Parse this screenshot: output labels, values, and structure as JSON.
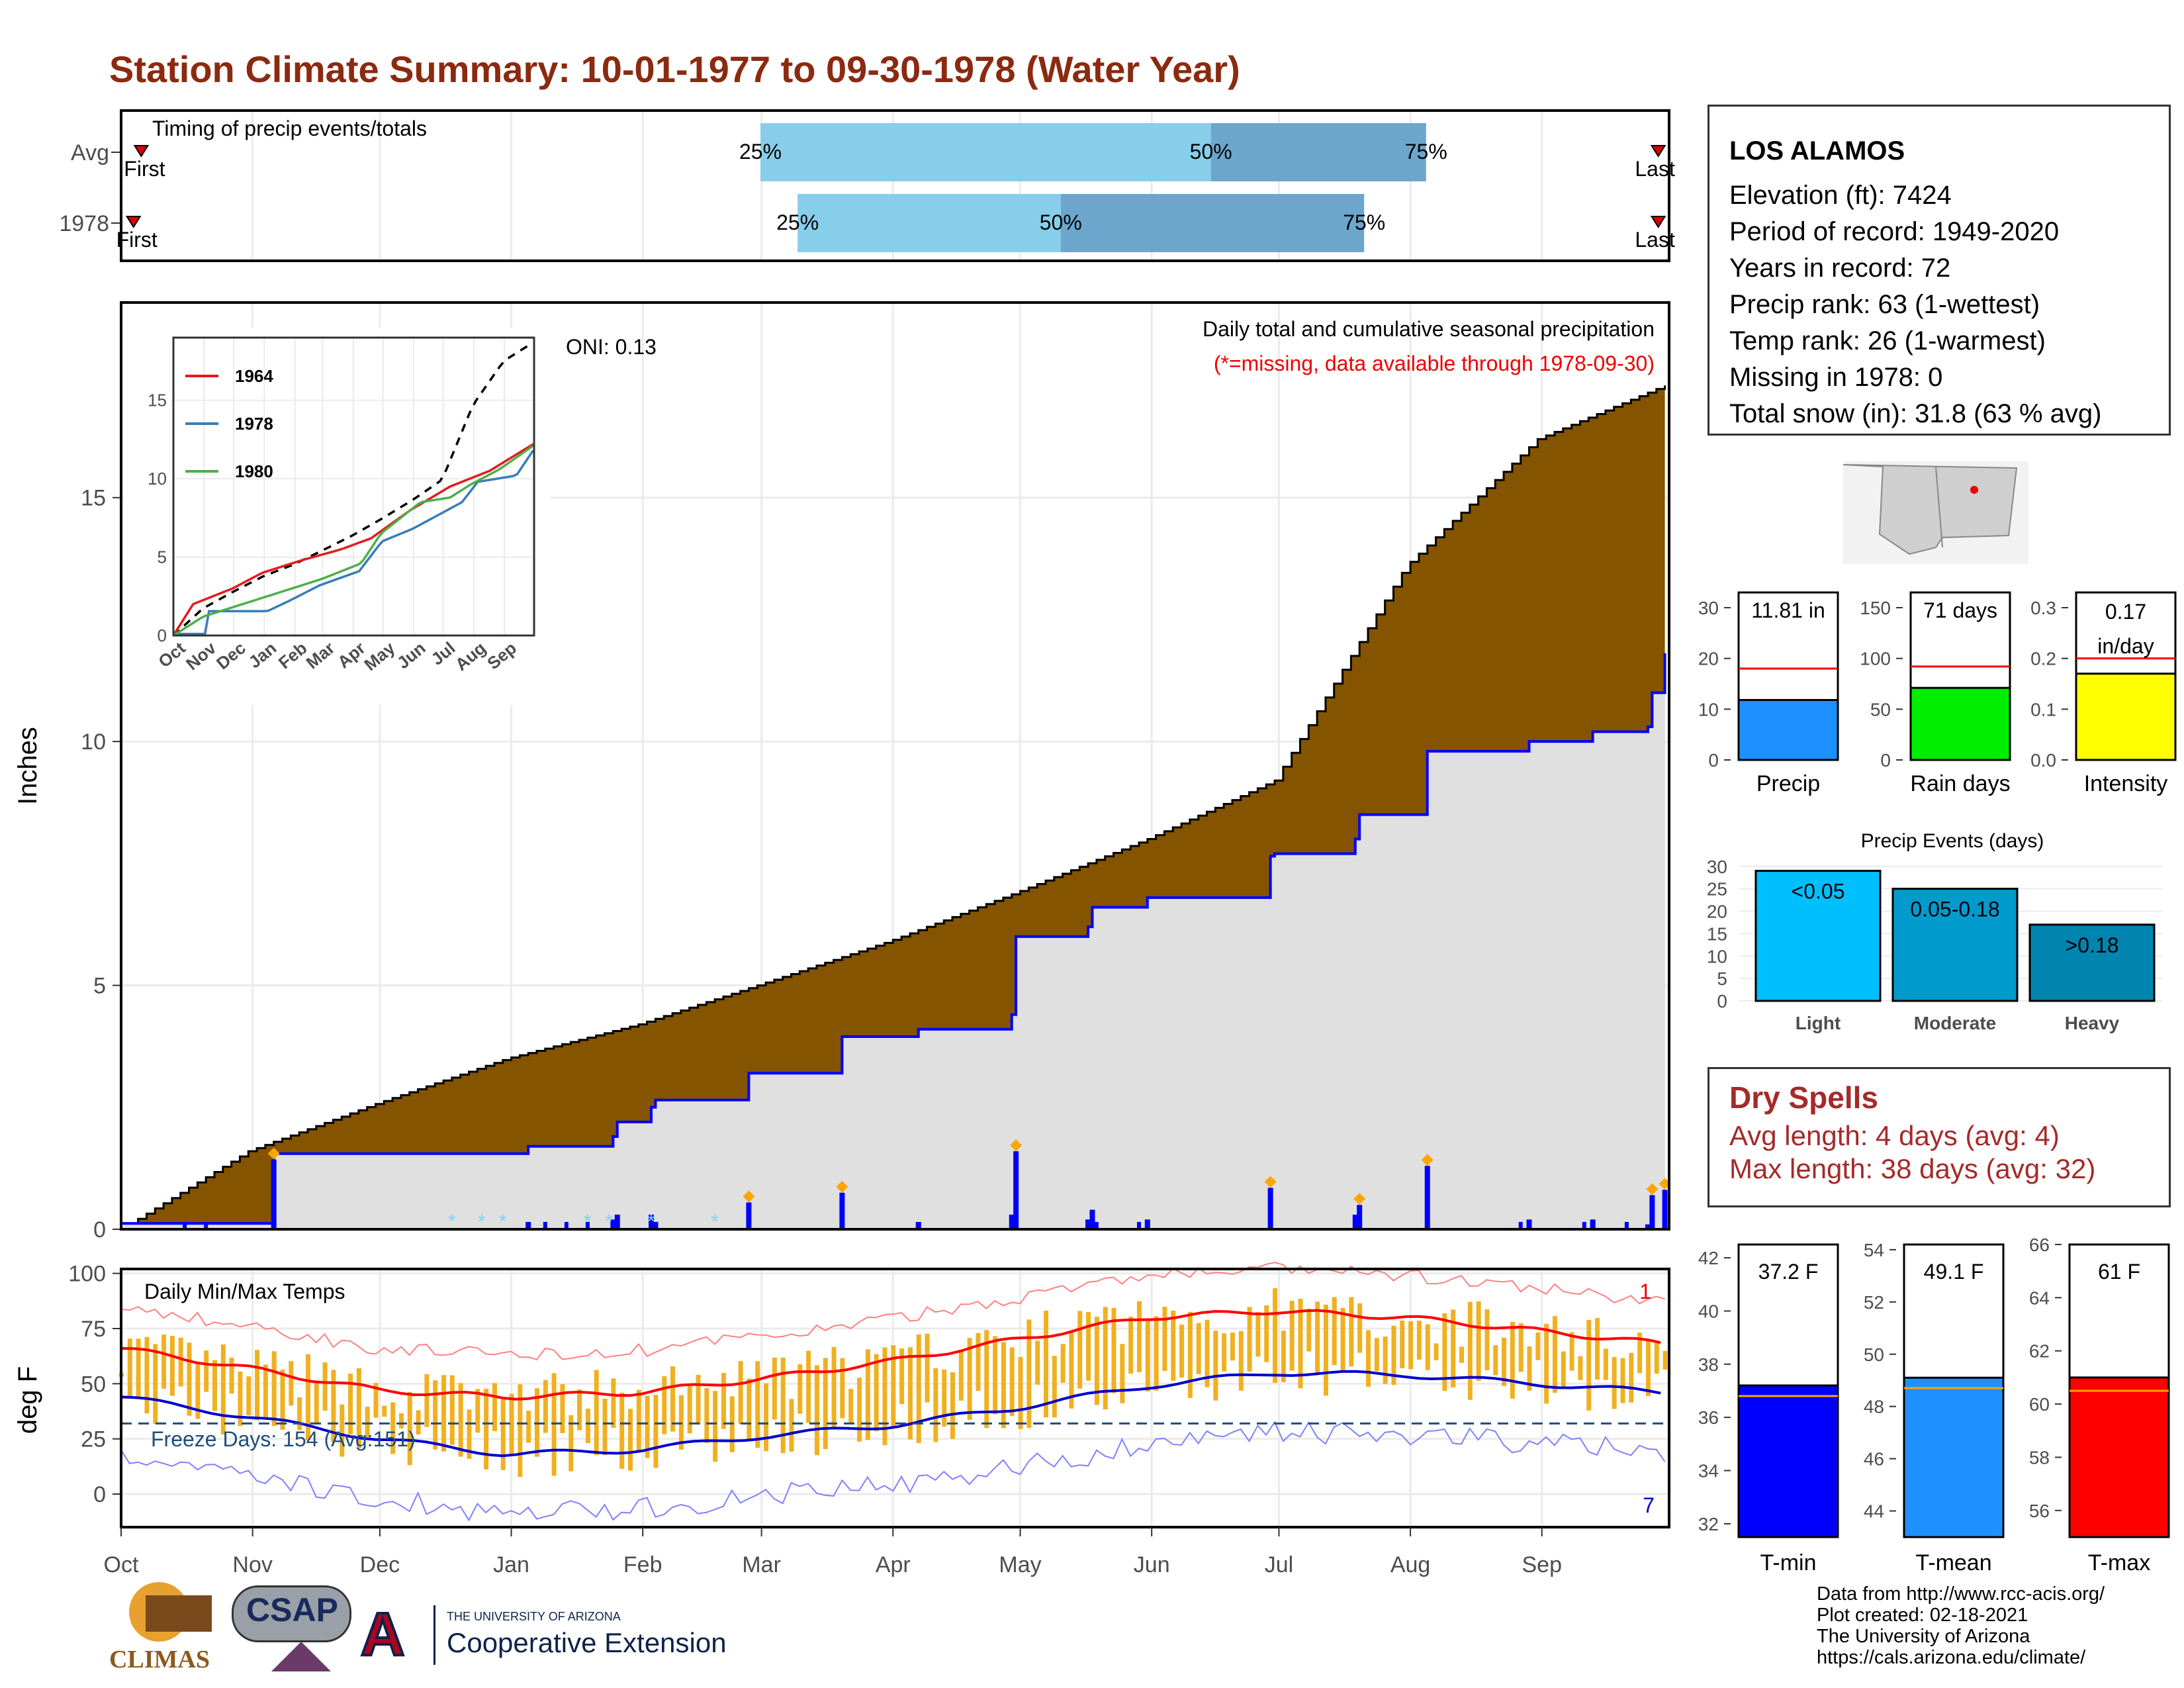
{
  "title": "Station Climate Summary: 10-01-1977 to 09-30-1978 (Water Year)",
  "timing": {
    "label": "Timing of precip events/totals",
    "rows": [
      {
        "name": "Avg",
        "first_frac": 0.013,
        "last_frac": 0.993,
        "p25_frac": 0.413,
        "p50_frac": 0.704,
        "p75_frac": 0.843
      },
      {
        "name": "1978",
        "first_frac": 0.008,
        "last_frac": 0.993,
        "p25_frac": 0.437,
        "p50_frac": 0.607,
        "p75_frac": 0.803
      }
    ],
    "first_label": "First",
    "last_label": "Last",
    "p25_label": "25%",
    "p50_label": "50%",
    "p75_label": "75%"
  },
  "precip_panel": {
    "ylabel": "Inches",
    "title": "Daily total and cumulative seasonal precipitation",
    "missing_note": "(*=missing, data available through 1978-09-30)",
    "oni": "ONI: 0.13"
  },
  "inset": {
    "legend": [
      "1964",
      "1978",
      "1980"
    ],
    "colors": [
      "#e41a1c",
      "#377eb8",
      "#4daf4a"
    ],
    "months": [
      "Oct",
      "Nov",
      "Dec",
      "Jan",
      "Feb",
      "Mar",
      "Apr",
      "May",
      "Jun",
      "Jul",
      "Aug",
      "Sep"
    ]
  },
  "temp_panel": {
    "ylabel": "deg F",
    "label": "Daily Min/Max Temps",
    "freeze": "Freeze Days: 154 (Avg:151)",
    "count_max": "1",
    "count_min": "7"
  },
  "months": [
    "Oct",
    "Nov",
    "Dec",
    "Jan",
    "Feb",
    "Mar",
    "Apr",
    "May",
    "Jun",
    "Jul",
    "Aug",
    "Sep"
  ],
  "station": {
    "name": "LOS ALAMOS",
    "lines": [
      "Elevation (ft): 7424",
      "Period of record: 1949-2020",
      "Years in record: 72",
      "Precip rank: 63 (1-wettest)",
      "Temp rank: 26 (1-warmest)",
      "Missing in 1978: 0",
      "Total snow (in): 31.8 (63 % avg)"
    ]
  },
  "small_bars": [
    {
      "label": "Precip",
      "value_text": "11.81 in",
      "value": 11.81,
      "avg": 18.0,
      "max": 33,
      "ticks": [
        0,
        10,
        20,
        30
      ],
      "color": "#1e90ff"
    },
    {
      "label": "Rain days",
      "value_text": "71 days",
      "value": 71,
      "avg": 92,
      "max": 165,
      "ticks": [
        0,
        50,
        100,
        150
      ],
      "color": "#00ee00"
    },
    {
      "label": "Intensity",
      "value_text_1": "0.17",
      "value_text_2": "in/day",
      "value": 0.17,
      "avg": 0.2,
      "max": 0.33,
      "ticks": [
        "0.0",
        "0.1",
        "0.2",
        "0.3"
      ],
      "color": "#ffff00"
    }
  ],
  "precip_events": {
    "title": "Precip Events (days)",
    "ticks": [
      0,
      5,
      10,
      15,
      20,
      25,
      30
    ],
    "bars": [
      {
        "cat": "Light",
        "label": "<0.05",
        "value": 29,
        "color": "#00bfff"
      },
      {
        "cat": "Moderate",
        "label": "0.05-0.18",
        "value": 25,
        "color": "#009acd"
      },
      {
        "cat": "Heavy",
        "label": ">0.18",
        "value": 17,
        "color": "#0084b0"
      }
    ]
  },
  "dry_spells": {
    "title": "Dry Spells",
    "avg_len": "Avg length: 4 days (avg: 4)",
    "max_len": "Max length: 38 days (avg: 32)"
  },
  "temp_bars": [
    {
      "label": "T-min",
      "value_text": "37.2 F",
      "value": 37.2,
      "avg": 36.8,
      "min": 31.5,
      "max": 42.5,
      "ticks": [
        32,
        34,
        36,
        38,
        40,
        42
      ],
      "color": "#0000ff"
    },
    {
      "label": "T-mean",
      "value_text": "49.1 F",
      "value": 49.1,
      "avg": 48.7,
      "min": 43,
      "max": 54.2,
      "ticks": [
        44,
        46,
        48,
        50,
        52,
        54
      ],
      "color": "#1e90ff"
    },
    {
      "label": "T-max",
      "value_text": "61 F",
      "value": 61.0,
      "avg": 60.5,
      "min": 55,
      "max": 66,
      "ticks": [
        56,
        58,
        60,
        62,
        64,
        66
      ],
      "color": "#ff0000"
    }
  ],
  "credits": [
    "Data from http://www.rcc-acis.org/",
    "Plot created: 02-18-2021",
    "The University of Arizona",
    "https://cals.arizona.edu/climate/"
  ],
  "logos": {
    "climas": "CLIMAS",
    "csap": "CSAP",
    "ua_small": "THE UNIVERSITY OF ARIZONA",
    "ua_big": "Cooperative Extension"
  },
  "chart_data": {
    "type": "area",
    "title": "Daily total and cumulative seasonal precipitation",
    "ylabel": "Inches",
    "ylim": [
      0,
      19
    ],
    "x_months": [
      "Oct",
      "Nov",
      "Dec",
      "Jan",
      "Feb",
      "Mar",
      "Apr",
      "May",
      "Jun",
      "Jul",
      "Aug",
      "Sep"
    ],
    "series": [
      {
        "name": "Avg cumulative",
        "x_day": [
          0,
          30,
          61,
          91,
          122,
          150,
          181,
          211,
          242,
          272,
          303,
          334,
          364
        ],
        "values": [
          0,
          1.6,
          2.6,
          3.5,
          4.2,
          5.0,
          5.9,
          6.9,
          8.0,
          9.2,
          13.6,
          16.2,
          17.3
        ]
      },
      {
        "name": "1978 cumulative",
        "x_day": [
          0,
          35,
          36,
          60,
          61,
          95,
          96,
          116,
          117,
          125,
          126,
          147,
          148,
          170,
          188,
          210,
          211,
          228,
          229,
          241,
          242,
          271,
          272,
          291,
          292,
          308,
          332,
          347,
          360,
          361,
          364
        ],
        "values": [
          0.12,
          0.12,
          1.55,
          1.55,
          1.55,
          1.55,
          1.7,
          1.9,
          2.2,
          2.5,
          2.65,
          2.65,
          3.2,
          3.95,
          4.1,
          4.4,
          6.0,
          6.2,
          6.6,
          6.6,
          6.8,
          7.65,
          7.7,
          8.0,
          8.5,
          9.8,
          10.0,
          10.2,
          10.3,
          11.0,
          11.81
        ]
      }
    ],
    "temps": {
      "ylim": [
        -15,
        102
      ],
      "normal_max_knots": {
        "x_day": [
          0,
          30,
          61,
          91,
          122,
          150,
          181,
          211,
          242,
          272,
          303,
          334,
          364
        ],
        "values": [
          66,
          57,
          47,
          44,
          46,
          52,
          60,
          70,
          80,
          83,
          80,
          74,
          68
        ]
      },
      "normal_min_knots": {
        "x_day": [
          0,
          30,
          61,
          91,
          122,
          150,
          181,
          211,
          242,
          272,
          303,
          334,
          364
        ],
        "values": [
          44,
          35,
          25,
          18,
          20,
          26,
          31,
          39,
          49,
          55,
          54,
          50,
          46
        ]
      },
      "freeze_line": 32
    }
  }
}
